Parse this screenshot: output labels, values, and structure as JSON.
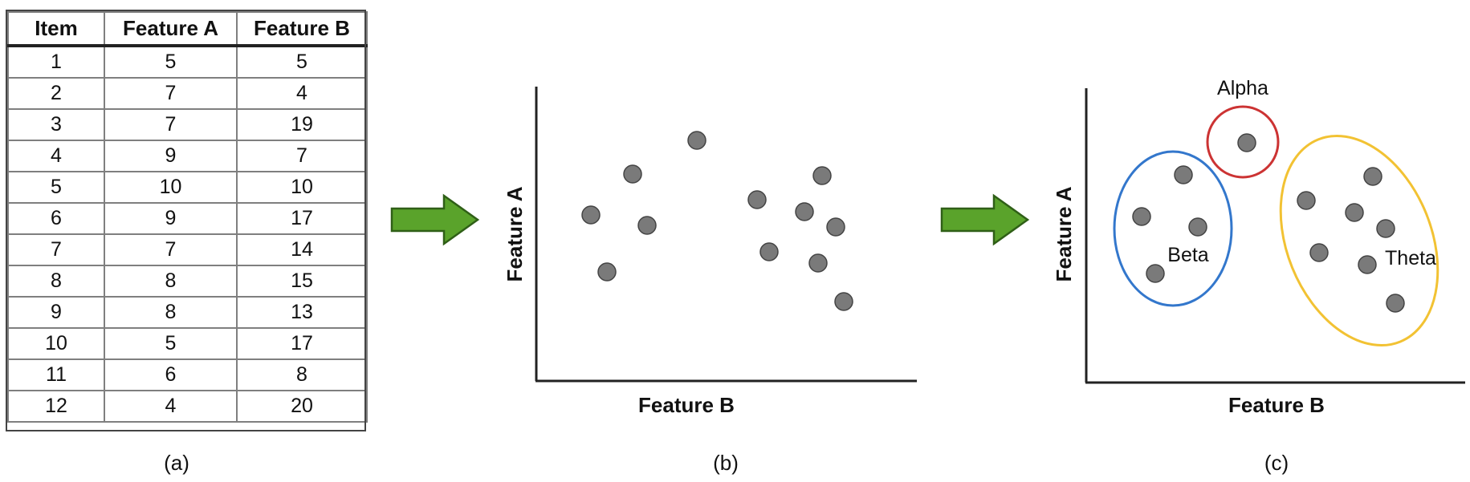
{
  "table": {
    "headers": [
      "Item",
      "Feature A",
      "Feature B"
    ],
    "rows": [
      [
        "1",
        "5",
        "5"
      ],
      [
        "2",
        "7",
        "4"
      ],
      [
        "3",
        "7",
        "19"
      ],
      [
        "4",
        "9",
        "7"
      ],
      [
        "5",
        "10",
        "10"
      ],
      [
        "6",
        "9",
        "17"
      ],
      [
        "7",
        "7",
        "14"
      ],
      [
        "8",
        "8",
        "15"
      ],
      [
        "9",
        "8",
        "13"
      ],
      [
        "10",
        "5",
        "17"
      ],
      [
        "11",
        "6",
        "8"
      ],
      [
        "12",
        "4",
        "20"
      ]
    ]
  },
  "captions": {
    "a": "(a)",
    "b": "(b)",
    "c": "(c)"
  },
  "plot_b": {
    "xlabel": "Feature B",
    "ylabel": "Feature A"
  },
  "plot_c": {
    "xlabel": "Feature B",
    "ylabel": "Feature A",
    "clusters": {
      "alpha": "Alpha",
      "beta": "Beta",
      "theta": "Theta"
    }
  },
  "colors": {
    "point": "#7a7a7a",
    "axis": "#222222",
    "arrow_fill": "#5aa32b",
    "arrow_stroke": "#2f5f17",
    "alpha": "#cc3333",
    "beta": "#3377cc",
    "theta": "#f2c233"
  }
}
